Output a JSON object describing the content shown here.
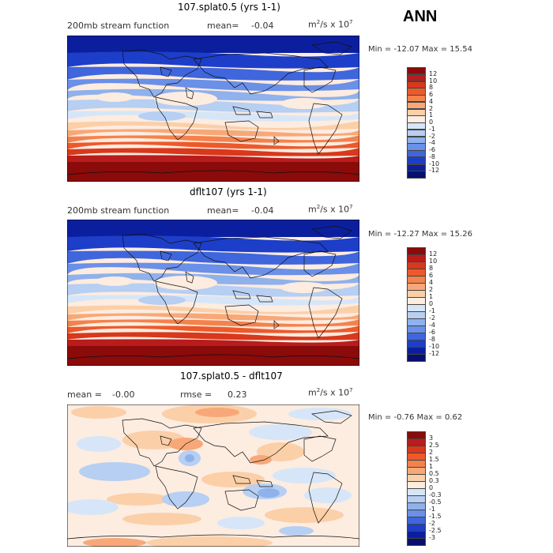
{
  "season_label": "ANN",
  "panels": [
    {
      "title": "107.splat0.5 (yrs 1-1)",
      "subtitle": "200mb stream function",
      "mean_label": "mean=",
      "mean_value": "-0.04",
      "units_base": "m",
      "units_exp1": "2",
      "units_mid": "/s x 10",
      "units_exp2": "7",
      "minmax": "Min = -12.07 Max =  15.54",
      "colorbar_labels": [
        "12",
        "10",
        "8",
        "6",
        "4",
        "2",
        "1",
        "0",
        "-1",
        "-2",
        "-4",
        "-6",
        "-8",
        "-10",
        "-12"
      ],
      "colorbar_colors": [
        "#8b0a0a",
        "#b81c1c",
        "#d8381c",
        "#ec5a2c",
        "#f4824c",
        "#f8a878",
        "#fbcfa8",
        "#fdece0",
        "#d6e6f8",
        "#b6cff2",
        "#8fb1ec",
        "#6a90e8",
        "#3f66dc",
        "#1d3ec9",
        "#0b1f9e",
        "#07106e"
      ]
    },
    {
      "title": "dflt107 (yrs 1-1)",
      "subtitle": "200mb stream function",
      "mean_label": "mean=",
      "mean_value": "-0.04",
      "units_base": "m",
      "units_exp1": "2",
      "units_mid": "/s x 10",
      "units_exp2": "7",
      "minmax": "Min = -12.27 Max =  15.26",
      "colorbar_labels": [
        "12",
        "10",
        "8",
        "6",
        "4",
        "2",
        "1",
        "0",
        "-1",
        "-2",
        "-4",
        "-6",
        "-8",
        "-10",
        "-12"
      ],
      "colorbar_colors": [
        "#8b0a0a",
        "#b81c1c",
        "#d8381c",
        "#ec5a2c",
        "#f4824c",
        "#f8a878",
        "#fbcfa8",
        "#fdece0",
        "#d6e6f8",
        "#b6cff2",
        "#8fb1ec",
        "#6a90e8",
        "#3f66dc",
        "#1d3ec9",
        "#0b1f9e",
        "#07106e"
      ]
    },
    {
      "title": "107.splat0.5 - dflt107",
      "mean_label": "mean =",
      "mean_value": "-0.00",
      "rmse_label": "rmse =",
      "rmse_value": "0.23",
      "units_base": "m",
      "units_exp1": "2",
      "units_mid": "/s x 10",
      "units_exp2": "7",
      "minmax": "Min = -0.76 Max =  0.62",
      "colorbar_labels": [
        "3",
        "2.5",
        "2",
        "1.5",
        "1",
        "0.5",
        "0.3",
        "0",
        "-0.3",
        "-0.5",
        "-1",
        "-1.5",
        "-2",
        "-2.5",
        "-3"
      ],
      "colorbar_colors": [
        "#8b0a0a",
        "#b81c1c",
        "#d8381c",
        "#ec5a2c",
        "#f4824c",
        "#f8a878",
        "#fbcfa8",
        "#fdece0",
        "#d6e6f8",
        "#b6cff2",
        "#8fb1ec",
        "#6a90e8",
        "#3f66dc",
        "#1d3ec9",
        "#0b1f9e",
        "#07106e"
      ]
    }
  ]
}
